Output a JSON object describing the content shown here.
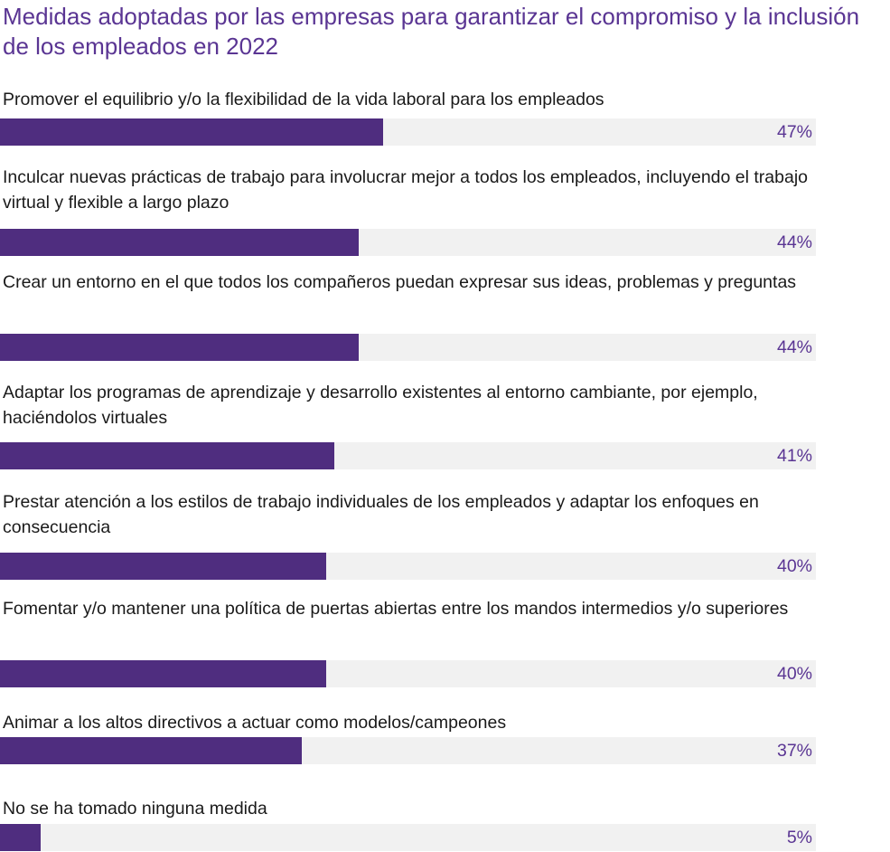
{
  "chart_data": {
    "type": "bar",
    "orientation": "horizontal",
    "title": "Medidas adoptadas por las empresas para garantizar el compromiso y la inclusión de los empleados en 2022",
    "xlim": [
      0,
      100
    ],
    "categories": [
      "Promover el equilibrio y/o la flexibilidad de la vida laboral para los empleados",
      "Inculcar nuevas prácticas de trabajo para involucrar mejor a todos los empleados, incluyendo el trabajo virtual y flexible a largo plazo",
      "Crear un entorno en el que todos los compañeros puedan expresar sus ideas, problemas y preguntas",
      "Adaptar los programas de aprendizaje y desarrollo existentes al entorno cambiante, por ejemplo, haciéndolos virtuales",
      "Prestar atención a los estilos de trabajo individuales de los empleados y adaptar los enfoques en consecuencia",
      "Fomentar y/o mantener una política de puertas abiertas entre los mandos intermedios y/o superiores",
      "Animar a los altos directivos a actuar como modelos/campeones",
      "No se ha tomado ninguna medida"
    ],
    "values": [
      47,
      44,
      44,
      41,
      40,
      40,
      37,
      5
    ],
    "value_labels": [
      "47%",
      "44%",
      "44%",
      "41%",
      "40%",
      "40%",
      "37%",
      "5%"
    ],
    "bar_color": "#4f2d7f",
    "track_color": "#f1f1f1"
  }
}
